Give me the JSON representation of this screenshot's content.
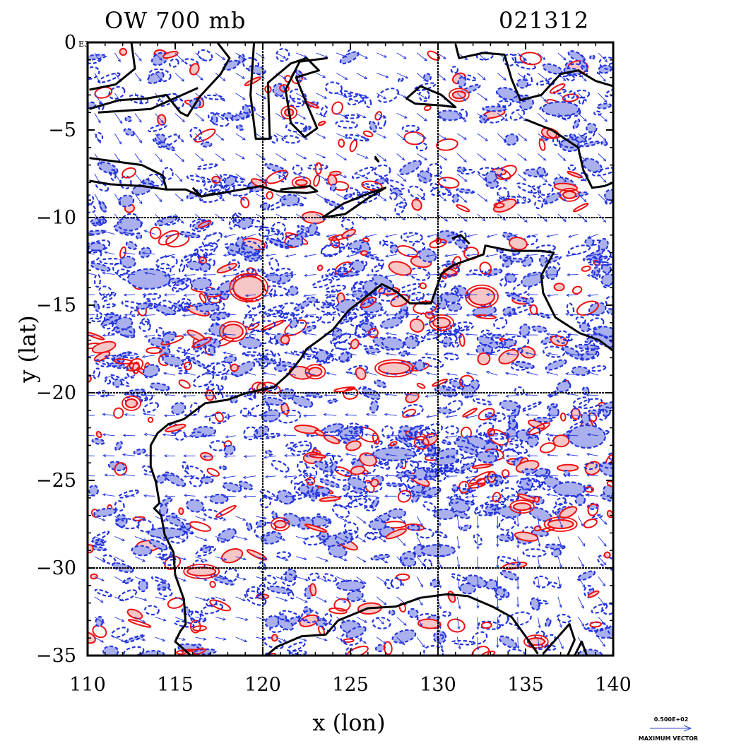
{
  "title": {
    "left": "OW 700 mb",
    "right": "021312"
  },
  "axes": {
    "xlabel": "x (lon)",
    "ylabel": "y (lat)",
    "xlim": [
      110,
      140
    ],
    "ylim": [
      -35,
      0
    ],
    "x_ticks": [
      "110",
      "115",
      "120",
      "125",
      "130",
      "135",
      "140"
    ],
    "y_ticks": [
      "0",
      "−5",
      "−10",
      "−15",
      "−20",
      "−25",
      "−30",
      "−35"
    ],
    "corner_mark": "E3"
  },
  "legend": {
    "value": "0.500E+02",
    "label": "MAXIMUM VECTOR",
    "color": "#3344cc"
  },
  "colors": {
    "positive_contour": "#ee1111",
    "positive_fill": "#f7c6c6",
    "negative_contour": "#2233dd",
    "negative_fill": "#aab0ee",
    "vector": "#2233dd",
    "coast": "#000000"
  },
  "map_data": {
    "type": "contour_vector_map",
    "grid_lines_lon": [
      120,
      130
    ],
    "grid_lines_lat": [
      -10,
      -20,
      -30
    ],
    "coastline": [
      [
        [
          112.5,
          0
        ],
        [
          112.7,
          -1.5
        ],
        [
          111.6,
          -2.4
        ],
        [
          110.1,
          -2.7
        ]
      ],
      [
        [
          110.1,
          -3.8
        ],
        [
          111.8,
          -3.3
        ],
        [
          113.4,
          -3.2
        ],
        [
          114.5,
          -3.0
        ],
        [
          115.3,
          -4.0
        ],
        [
          115.7,
          -4.2
        ],
        [
          116.4,
          -3.1
        ],
        [
          117.6,
          -1.8
        ],
        [
          118.1,
          -0.9
        ],
        [
          117.4,
          0
        ]
      ],
      [
        [
          110.1,
          -6.6
        ],
        [
          111.6,
          -6.8
        ],
        [
          113.1,
          -7.0
        ],
        [
          114.3,
          -7.6
        ],
        [
          114.5,
          -8.4
        ],
        [
          113.1,
          -8.2
        ],
        [
          111.3,
          -8.1
        ],
        [
          110.1,
          -7.9
        ]
      ],
      [
        [
          114.5,
          -8.4
        ],
        [
          115.6,
          -8.4
        ],
        [
          116.5,
          -8.8
        ],
        [
          118.2,
          -8.5
        ],
        [
          119.9,
          -8.2
        ],
        [
          120.8,
          -8.5
        ],
        [
          122.5,
          -8.6
        ],
        [
          123.1,
          -8.5
        ],
        [
          122.7,
          -8.2
        ],
        [
          121.0,
          -8.4
        ]
      ],
      [
        [
          119.5,
          0
        ],
        [
          119.3,
          -3.0
        ],
        [
          119.6,
          -5.5
        ],
        [
          120.4,
          -5.5
        ],
        [
          120.3,
          -2.3
        ],
        [
          121.6,
          -1.2
        ],
        [
          122.5,
          -0.9
        ],
        [
          123.2,
          -1.6
        ],
        [
          121.9,
          -2.0
        ],
        [
          122.3,
          -3.0
        ],
        [
          123.1,
          -4.9
        ],
        [
          122.4,
          -5.4
        ],
        [
          121.6,
          -4.6
        ],
        [
          121.3,
          -2.7
        ],
        [
          122.1,
          -1.1
        ],
        [
          123.7,
          -0.9
        ]
      ],
      [
        [
          123.4,
          -10.0
        ],
        [
          124.6,
          -9.2
        ],
        [
          126.1,
          -8.6
        ],
        [
          127.0,
          -8.3
        ],
        [
          126.0,
          -8.9
        ],
        [
          124.7,
          -9.8
        ],
        [
          123.4,
          -10.0
        ]
      ],
      [
        [
          126.4,
          -6.5
        ],
        [
          126.6,
          -6.8
        ],
        [
          126.4,
          -6.6
        ]
      ],
      [
        [
          129.0,
          -2.5
        ],
        [
          130.2,
          -3.0
        ],
        [
          131.0,
          -3.7
        ],
        [
          130.2,
          -3.6
        ],
        [
          128.7,
          -3.5
        ],
        [
          128.2,
          -3.2
        ],
        [
          129.0,
          -2.5
        ]
      ],
      [
        [
          131.0,
          -0.1
        ],
        [
          131.2,
          -0.9
        ],
        [
          132.6,
          -0.6
        ],
        [
          133.8,
          -0.7
        ],
        [
          134.2,
          -2.1
        ],
        [
          134.7,
          -3.3
        ],
        [
          135.9,
          -3.0
        ],
        [
          137.0,
          -1.8
        ],
        [
          138.0,
          -1.6
        ],
        [
          139.0,
          -2.2
        ],
        [
          140,
          -2.5
        ]
      ],
      [
        [
          135.0,
          -4.4
        ],
        [
          136.5,
          -5.0
        ],
        [
          138.0,
          -6.0
        ],
        [
          138.3,
          -7.3
        ],
        [
          138.8,
          -8.3
        ],
        [
          139.5,
          -8.2
        ],
        [
          140,
          -8.0
        ]
      ],
      [
        [
          140,
          -17.6
        ],
        [
          139.2,
          -17.0
        ],
        [
          138.1,
          -16.6
        ],
        [
          136.7,
          -15.7
        ],
        [
          136.0,
          -14.3
        ],
        [
          135.9,
          -13.3
        ],
        [
          136.6,
          -12.0
        ],
        [
          135.9,
          -11.9
        ],
        [
          134.2,
          -11.9
        ],
        [
          132.7,
          -11.6
        ],
        [
          132.6,
          -12.1
        ],
        [
          130.9,
          -12.7
        ],
        [
          130.2,
          -13.2
        ],
        [
          129.6,
          -14.9
        ],
        [
          128.4,
          -14.9
        ],
        [
          127.6,
          -14.2
        ],
        [
          126.8,
          -13.8
        ],
        [
          125.8,
          -14.6
        ],
        [
          124.9,
          -15.3
        ],
        [
          124.0,
          -16.4
        ],
        [
          123.2,
          -17.0
        ],
        [
          122.5,
          -17.5
        ],
        [
          122.2,
          -18.0
        ],
        [
          121.5,
          -18.9
        ],
        [
          120.6,
          -19.7
        ],
        [
          119.1,
          -20.0
        ],
        [
          118.0,
          -20.4
        ],
        [
          116.7,
          -20.6
        ],
        [
          115.5,
          -21.5
        ],
        [
          114.6,
          -21.8
        ],
        [
          114.0,
          -22.3
        ],
        [
          113.6,
          -23.0
        ],
        [
          113.6,
          -24.2
        ],
        [
          113.9,
          -25.1
        ],
        [
          114.1,
          -26.3
        ],
        [
          113.8,
          -26.6
        ],
        [
          114.2,
          -27.0
        ],
        [
          114.4,
          -28.1
        ],
        [
          114.9,
          -29.1
        ],
        [
          115.0,
          -30.4
        ],
        [
          115.5,
          -31.8
        ],
        [
          115.6,
          -33.2
        ],
        [
          115.3,
          -33.6
        ],
        [
          115.0,
          -34.2
        ],
        [
          115.9,
          -35.0
        ]
      ],
      [
        [
          120.2,
          -35.0
        ],
        [
          120.8,
          -34.5
        ],
        [
          122.2,
          -33.9
        ],
        [
          123.6,
          -33.8
        ],
        [
          124.3,
          -33.0
        ],
        [
          126.0,
          -32.3
        ],
        [
          127.6,
          -32.2
        ],
        [
          129.0,
          -31.7
        ],
        [
          130.5,
          -31.5
        ],
        [
          131.7,
          -31.6
        ],
        [
          133.1,
          -32.2
        ],
        [
          134.2,
          -32.8
        ],
        [
          135.0,
          -33.9
        ],
        [
          135.7,
          -34.9
        ]
      ],
      [
        [
          136.0,
          -34.9
        ],
        [
          137.5,
          -33.2
        ],
        [
          137.8,
          -34.1
        ],
        [
          137.4,
          -35.0
        ]
      ],
      [
        [
          137.8,
          -35.0
        ],
        [
          138.2,
          -34.2
        ],
        [
          138.5,
          -35.0
        ]
      ],
      [
        [
          110.6,
          -4.0
        ],
        [
          113.6,
          -3.8
        ],
        [
          116.3,
          -2.6
        ]
      ],
      [
        [
          116.0,
          -8.3
        ],
        [
          116.5,
          -8.8
        ],
        [
          117.3,
          -8.6
        ]
      ],
      [
        [
          130.8,
          -11.2
        ],
        [
          131.3,
          -11.0
        ],
        [
          131.8,
          -11.5
        ]
      ]
    ]
  }
}
